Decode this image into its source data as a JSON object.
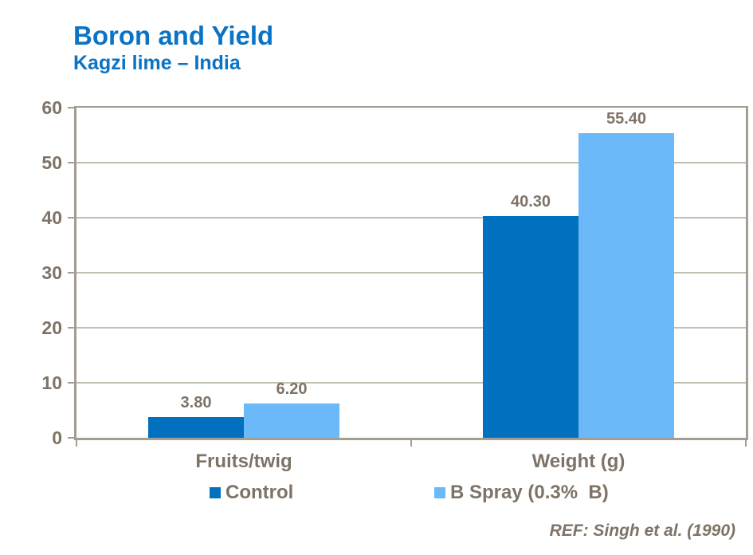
{
  "header": {
    "title": "Boron and Yield",
    "subtitle": "Kagzi lime – India"
  },
  "footer": {
    "ref": "REF: Singh et al. (1990)"
  },
  "colors": {
    "bg": "#FFFFFF",
    "title_blue": "#0A73C5",
    "control_blue": "#0070BF",
    "b_spray_blue": "#6CB9F9",
    "text_gray": "#7E7366",
    "gridline": "#C4BDB1",
    "frame": "#A49D91"
  },
  "chart_data": {
    "type": "bar",
    "title": "Boron and Yield",
    "subtitle": "Kagzi lime – India",
    "categories": [
      "Fruits/twig",
      "Weight (g)"
    ],
    "series": [
      {
        "name": "Control",
        "color_key": "control_blue",
        "values": [
          3.8,
          40.3
        ],
        "labels": [
          "3.80",
          "40.30"
        ]
      },
      {
        "name": "B Spray (0.3%  B)",
        "color_key": "b_spray_blue",
        "values": [
          6.2,
          55.4
        ],
        "labels": [
          "6.20",
          "55.40"
        ]
      }
    ],
    "xlabel": "",
    "ylabel": "",
    "ylim": [
      0,
      60
    ],
    "y_ticks": [
      0,
      10,
      20,
      30,
      40,
      50,
      60
    ],
    "grid": true,
    "legend_position": "bottom"
  }
}
